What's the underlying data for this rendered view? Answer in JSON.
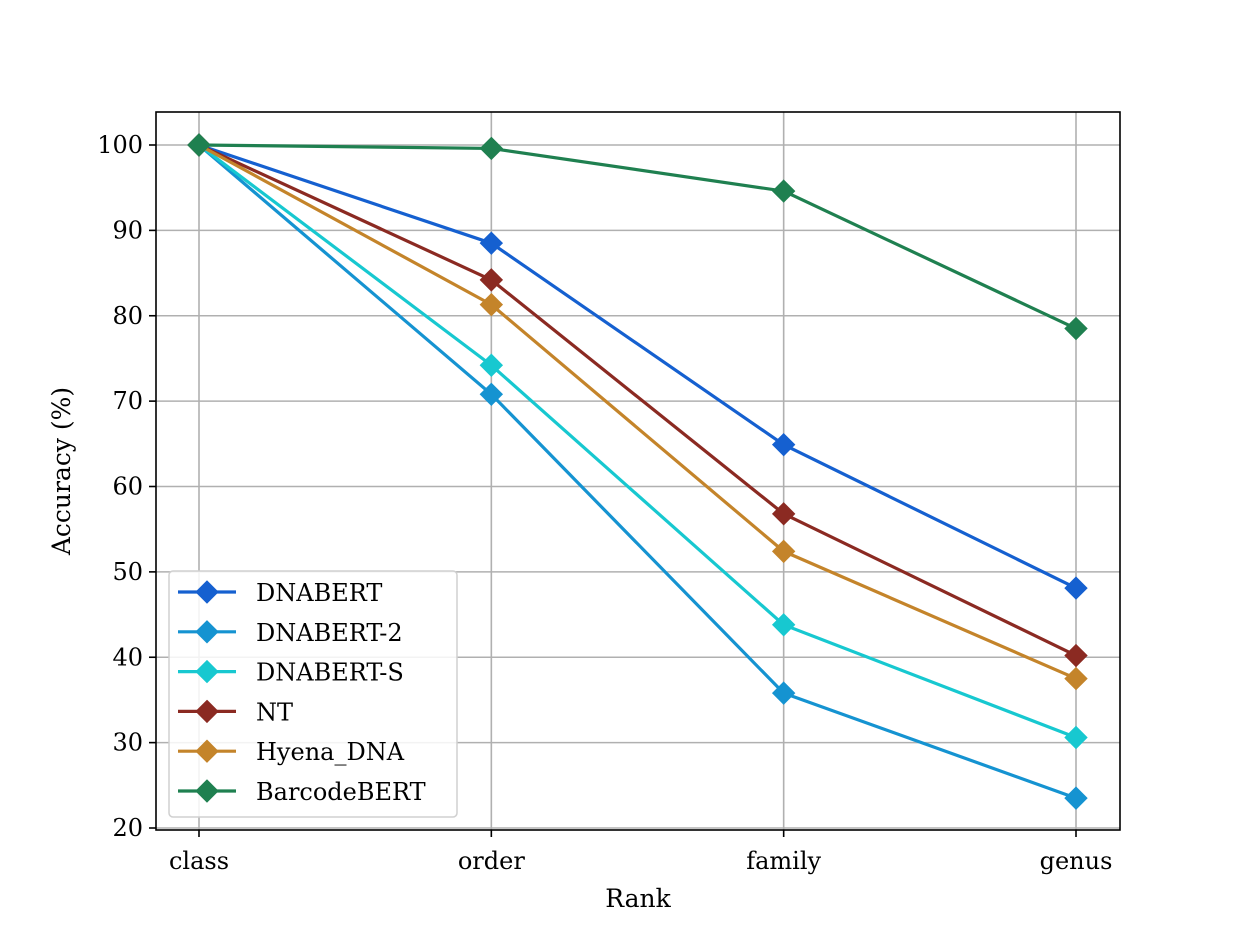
{
  "chart_data": {
    "type": "line",
    "title": "",
    "xlabel": "Rank",
    "ylabel": "Accuracy (%)",
    "categories": [
      "class",
      "order",
      "family",
      "genus"
    ],
    "ylim": [
      20,
      100
    ],
    "yticks": [
      20,
      30,
      40,
      50,
      60,
      70,
      80,
      90,
      100
    ],
    "grid": true,
    "legend_position": "lower-left",
    "marker": "diamond",
    "series": [
      {
        "name": "DNABERT",
        "color": "#1560d0",
        "values": [
          100,
          88.5,
          64.9,
          48.1
        ]
      },
      {
        "name": "DNABERT-2",
        "color": "#1593d1",
        "values": [
          100,
          70.8,
          35.8,
          23.5
        ]
      },
      {
        "name": "DNABERT-S",
        "color": "#17c8d0",
        "values": [
          100,
          74.2,
          43.8,
          30.6
        ]
      },
      {
        "name": "NT",
        "color": "#8b2a22",
        "values": [
          100,
          84.2,
          56.8,
          40.2
        ]
      },
      {
        "name": "Hyena_DNA",
        "color": "#c4842a",
        "values": [
          100,
          81.3,
          52.4,
          37.5
        ]
      },
      {
        "name": "BarcodeBERT",
        "color": "#1f8050",
        "values": [
          100,
          99.6,
          94.6,
          78.5
        ]
      }
    ]
  }
}
